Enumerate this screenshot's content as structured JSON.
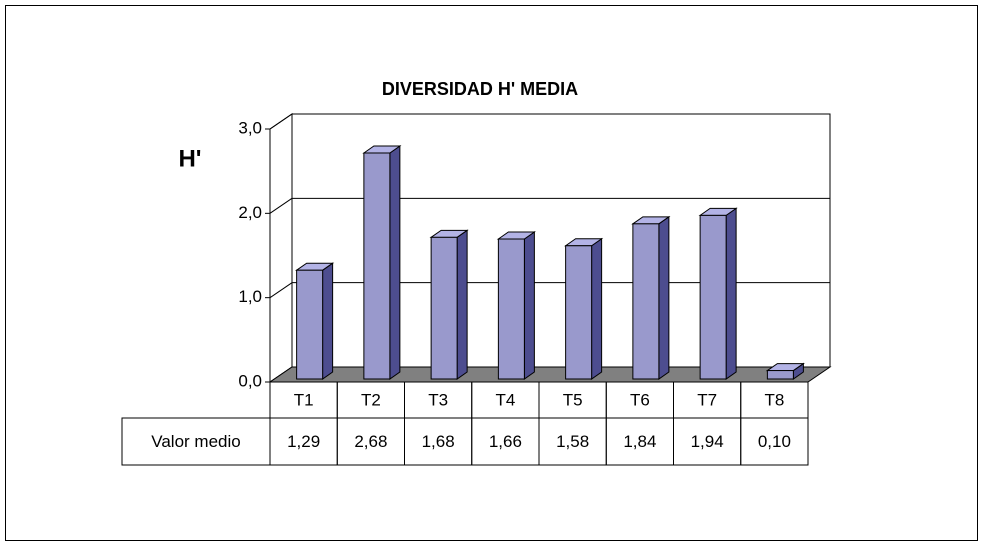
{
  "chart_data": {
    "type": "bar3d",
    "title": "DIVERSIDAD H' MEDIA",
    "y_label": "H'",
    "categories": [
      "T1",
      "T2",
      "T3",
      "T4",
      "T5",
      "T6",
      "T7",
      "T8"
    ],
    "series": [
      {
        "name": "Valor medio",
        "color": "#9999cc",
        "values": [
          1.29,
          2.68,
          1.68,
          1.66,
          1.58,
          1.84,
          1.94,
          0.1
        ],
        "value_labels": [
          "1,29",
          "2,68",
          "1,68",
          "1,66",
          "1,58",
          "1,84",
          "1,94",
          "0,10"
        ]
      }
    ],
    "ylim": [
      0,
      3
    ],
    "yticks": [
      {
        "value": 0,
        "label": "0,0"
      },
      {
        "value": 1,
        "label": "1,0"
      },
      {
        "value": 2,
        "label": "2,0"
      },
      {
        "value": 3,
        "label": "3,0"
      }
    ],
    "grid": true
  }
}
